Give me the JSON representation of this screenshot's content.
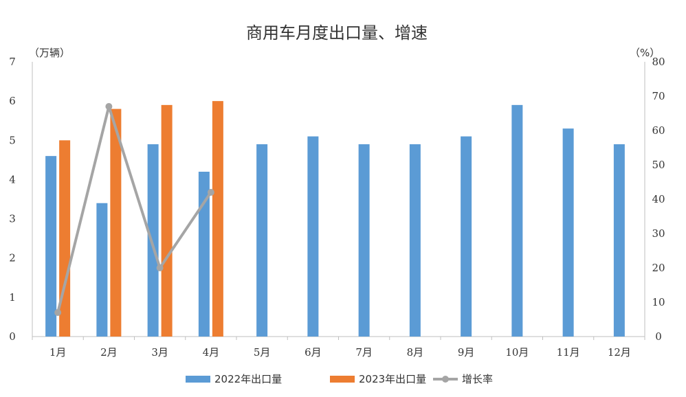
{
  "chart_data": {
    "type": "bar",
    "title": "商用车月度出口量、增速",
    "left_axis_unit": "（万辆）",
    "right_axis_unit": "（%）",
    "categories": [
      "1月",
      "2月",
      "3月",
      "4月",
      "5月",
      "6月",
      "7月",
      "8月",
      "9月",
      "10月",
      "11月",
      "12月"
    ],
    "ylim": [
      0,
      7
    ],
    "y2lim": [
      0,
      80
    ],
    "yticks": [
      "0",
      "1",
      "2",
      "3",
      "4",
      "5",
      "6",
      "7"
    ],
    "y2ticks": [
      "0",
      "10",
      "20",
      "30",
      "40",
      "50",
      "60",
      "70",
      "80"
    ],
    "series": [
      {
        "name": "2022年出口量",
        "type": "bar",
        "axis": "left",
        "color": "#5b9bd5",
        "values": [
          4.6,
          3.4,
          4.9,
          4.2,
          4.9,
          5.1,
          4.9,
          4.9,
          5.1,
          5.9,
          5.3,
          4.9
        ]
      },
      {
        "name": "2023年出口量",
        "type": "bar",
        "axis": "left",
        "color": "#ed7d31",
        "values": [
          5.0,
          5.8,
          5.9,
          6.0,
          null,
          null,
          null,
          null,
          null,
          null,
          null,
          null
        ]
      },
      {
        "name": "增长率",
        "type": "line",
        "axis": "right",
        "color": "#a5a5a5",
        "values": [
          7,
          67,
          20,
          42,
          null,
          null,
          null,
          null,
          null,
          null,
          null,
          null
        ]
      }
    ],
    "grid": false,
    "legend": "bottom"
  }
}
